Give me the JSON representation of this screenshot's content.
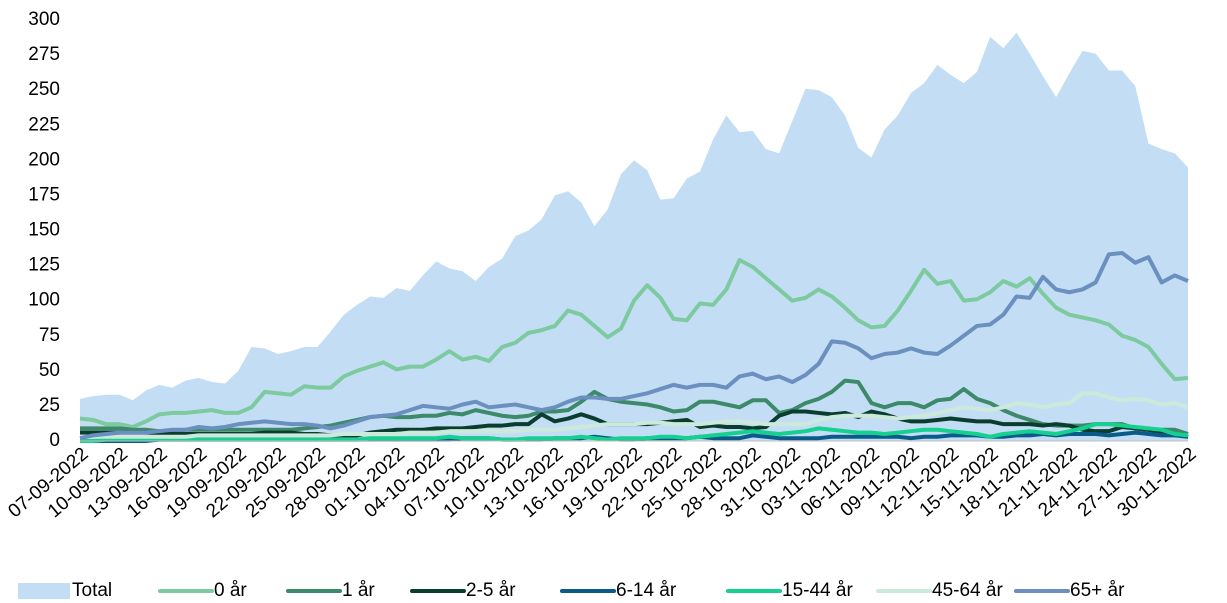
{
  "chart_data": {
    "type": "line",
    "categories": [
      "07-09-2022",
      null,
      null,
      "10-09-2022",
      null,
      null,
      "13-09-2022",
      null,
      null,
      "16-09-2022",
      null,
      null,
      "19-09-2022",
      null,
      null,
      "22-09-2022",
      null,
      null,
      "25-09-2022",
      null,
      null,
      "28-09-2022",
      null,
      null,
      "01-10-2022",
      null,
      null,
      "04-10-2022",
      null,
      null,
      "07-10-2022",
      null,
      null,
      "10-10-2022",
      null,
      null,
      "13-10-2022",
      null,
      null,
      "16-10-2022",
      null,
      null,
      "19-10-2022",
      null,
      null,
      "22-10-2022",
      null,
      null,
      "25-10-2022",
      null,
      null,
      "28-10-2022",
      null,
      null,
      "31-10-2022",
      null,
      null,
      "03-11-2022",
      null,
      null,
      "06-11-2022",
      null,
      null,
      "09-11-2022",
      null,
      null,
      "12-11-2022",
      null,
      null,
      "15-11-2022",
      null,
      null,
      "18-11-2022",
      null,
      null,
      "21-11-2022",
      null,
      null,
      "24-11-2022",
      null,
      null,
      "27-11-2022",
      null,
      null,
      "30-11-2022"
    ],
    "ylim": [
      0,
      300
    ],
    "yticks": [
      0,
      25,
      50,
      75,
      100,
      125,
      150,
      175,
      200,
      225,
      250,
      275,
      300
    ],
    "grid": false,
    "legend": "bottom",
    "series": [
      {
        "name": "Total",
        "style": "area",
        "color": "#c3def4",
        "values": [
          30,
          32,
          33,
          33,
          29,
          36,
          40,
          38,
          43,
          45,
          42,
          41,
          50,
          67,
          66,
          62,
          64,
          67,
          67,
          78,
          90,
          97,
          103,
          102,
          109,
          107,
          118,
          128,
          123,
          121,
          114,
          124,
          130,
          146,
          150,
          158,
          175,
          178,
          170,
          153,
          165,
          190,
          200,
          193,
          172,
          173,
          187,
          192,
          215,
          232,
          220,
          221,
          208,
          205,
          228,
          251,
          250,
          245,
          232,
          209,
          202,
          222,
          232,
          248,
          255,
          268,
          261,
          255,
          263,
          288,
          280,
          291,
          276,
          260,
          245,
          262,
          278,
          276,
          264,
          264,
          253,
          212,
          208,
          205,
          195
        ]
      },
      {
        "name": "0 år",
        "style": "line",
        "color": "#7dcaa0",
        "values": [
          16,
          15,
          12,
          12,
          10,
          14,
          19,
          20,
          20,
          21,
          22,
          20,
          20,
          24,
          35,
          34,
          33,
          39,
          38,
          38,
          46,
          50,
          53,
          56,
          51,
          53,
          53,
          58,
          64,
          58,
          60,
          57,
          67,
          70,
          77,
          79,
          82,
          93,
          90,
          82,
          74,
          80,
          100,
          111,
          102,
          87,
          86,
          98,
          97,
          108,
          129,
          124,
          116,
          108,
          100,
          102,
          108,
          103,
          95,
          86,
          81,
          82,
          93,
          107,
          122,
          112,
          114,
          100,
          101,
          106,
          114,
          110,
          116,
          105,
          95,
          90,
          88,
          86,
          83,
          75,
          72,
          67,
          55,
          44,
          45
        ]
      },
      {
        "name": "1 år",
        "style": "line",
        "color": "#3d8a6a",
        "values": [
          9,
          9,
          9,
          9,
          8,
          8,
          7,
          7,
          8,
          8,
          8,
          8,
          8,
          8,
          8,
          8,
          8,
          9,
          10,
          11,
          13,
          15,
          17,
          18,
          17,
          17,
          18,
          18,
          20,
          19,
          22,
          20,
          18,
          17,
          18,
          21,
          21,
          22,
          28,
          35,
          30,
          28,
          27,
          26,
          24,
          21,
          22,
          28,
          28,
          26,
          24,
          29,
          29,
          20,
          22,
          27,
          30,
          35,
          43,
          42,
          27,
          24,
          27,
          27,
          24,
          29,
          30,
          37,
          30,
          27,
          22,
          18,
          15,
          12,
          11,
          11,
          11,
          12,
          12,
          12,
          9,
          8,
          8,
          8,
          5
        ]
      },
      {
        "name": "2-5 år",
        "style": "line",
        "color": "#0b3d2e",
        "values": [
          6,
          6,
          6,
          6,
          6,
          6,
          5,
          5,
          5,
          5,
          5,
          5,
          5,
          5,
          6,
          6,
          6,
          5,
          5,
          4,
          4,
          4,
          6,
          7,
          8,
          8,
          8,
          9,
          9,
          9,
          10,
          11,
          11,
          12,
          12,
          19,
          14,
          16,
          19,
          16,
          12,
          12,
          12,
          12,
          13,
          14,
          15,
          10,
          11,
          10,
          10,
          9,
          10,
          18,
          21,
          21,
          20,
          19,
          20,
          17,
          21,
          19,
          16,
          14,
          14,
          15,
          16,
          15,
          14,
          14,
          12,
          12,
          12,
          11,
          12,
          11,
          8,
          7,
          7,
          10,
          9,
          8,
          6,
          5,
          3
        ]
      },
      {
        "name": "6-14 år",
        "style": "line",
        "color": "#0a5a8a",
        "values": [
          0,
          0,
          0,
          0,
          0,
          0,
          1,
          1,
          1,
          1,
          1,
          1,
          1,
          1,
          1,
          1,
          1,
          1,
          1,
          1,
          1,
          1,
          1,
          1,
          1,
          1,
          1,
          1,
          1,
          2,
          2,
          2,
          1,
          1,
          1,
          1,
          2,
          2,
          2,
          3,
          2,
          1,
          1,
          2,
          2,
          2,
          2,
          3,
          2,
          2,
          2,
          4,
          3,
          2,
          2,
          2,
          2,
          3,
          3,
          3,
          3,
          3,
          3,
          2,
          3,
          3,
          4,
          4,
          4,
          3,
          3,
          4,
          4,
          5,
          4,
          5,
          5,
          5,
          4,
          5,
          6,
          5,
          4,
          4,
          3
        ]
      },
      {
        "name": "15-44 år",
        "style": "line",
        "color": "#15d08f",
        "values": [
          0,
          0,
          1,
          1,
          1,
          1,
          1,
          1,
          1,
          1,
          1,
          1,
          1,
          1,
          1,
          1,
          1,
          1,
          1,
          1,
          1,
          1,
          2,
          2,
          2,
          2,
          2,
          2,
          3,
          2,
          2,
          2,
          1,
          1,
          2,
          2,
          2,
          2,
          3,
          2,
          1,
          2,
          2,
          2,
          3,
          3,
          2,
          3,
          4,
          5,
          6,
          7,
          6,
          5,
          6,
          7,
          9,
          8,
          7,
          6,
          6,
          5,
          6,
          7,
          8,
          8,
          7,
          6,
          5,
          3,
          5,
          6,
          7,
          6,
          5,
          7,
          9,
          12,
          12,
          11,
          10,
          9,
          8,
          5,
          4
        ]
      },
      {
        "name": "45-64 år",
        "style": "line",
        "color": "#cde9dc",
        "values": [
          3,
          3,
          3,
          3,
          3,
          3,
          3,
          3,
          3,
          4,
          4,
          4,
          4,
          4,
          4,
          4,
          4,
          4,
          4,
          4,
          5,
          5,
          5,
          5,
          5,
          6,
          6,
          6,
          7,
          7,
          7,
          7,
          7,
          7,
          8,
          8,
          8,
          9,
          10,
          11,
          12,
          12,
          12,
          13,
          13,
          12,
          12,
          12,
          13,
          14,
          14,
          13,
          12,
          12,
          12,
          12,
          15,
          17,
          18,
          18,
          18,
          17,
          16,
          17,
          18,
          20,
          22,
          24,
          23,
          22,
          24,
          27,
          26,
          24,
          26,
          27,
          34,
          34,
          31,
          29,
          30,
          29,
          26,
          27,
          24
        ]
      },
      {
        "name": "65+ år",
        "style": "line",
        "color": "#6b8fbf",
        "values": [
          2,
          4,
          5,
          6,
          6,
          6,
          7,
          8,
          8,
          10,
          9,
          10,
          12,
          13,
          14,
          13,
          12,
          12,
          11,
          9,
          11,
          14,
          17,
          18,
          19,
          22,
          25,
          24,
          23,
          26,
          28,
          24,
          25,
          26,
          24,
          22,
          24,
          28,
          31,
          31,
          30,
          30,
          32,
          34,
          37,
          40,
          38,
          40,
          40,
          38,
          46,
          48,
          44,
          46,
          42,
          47,
          55,
          71,
          70,
          66,
          59,
          62,
          63,
          66,
          63,
          62,
          68,
          75,
          82,
          83,
          90,
          103,
          102,
          117,
          108,
          106,
          108,
          113,
          133,
          134,
          127,
          131,
          113,
          118,
          114
        ]
      }
    ]
  }
}
